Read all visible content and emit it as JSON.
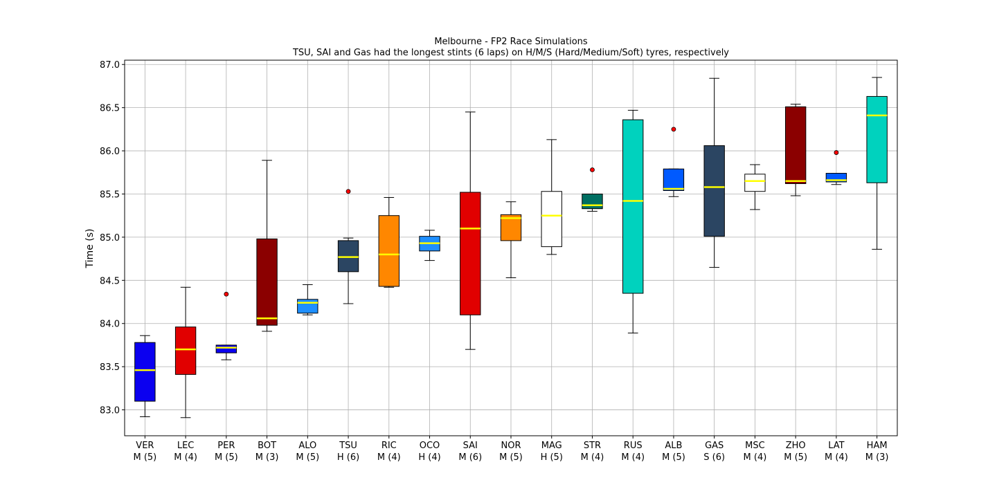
{
  "chart_data": {
    "type": "box",
    "title": "Melbourne - FP2 Race Simulations",
    "subtitle": "TSU, SAI and Gas had the longest stints (6 laps) on H/M/S (Hard/Medium/Soft) tyres, respectively",
    "xlabel": "",
    "ylabel": "Time (s)",
    "ylim": [
      82.7,
      87.05
    ],
    "yticks": [
      83.0,
      83.5,
      84.0,
      84.5,
      85.0,
      85.5,
      86.0,
      86.5,
      87.0
    ],
    "ytick_labels": [
      "83.0",
      "83.5",
      "84.0",
      "84.5",
      "85.0",
      "85.5",
      "86.0",
      "86.5",
      "87.0"
    ],
    "grid": true,
    "median_color": "#ffff00",
    "outlier_color": "#ff0000",
    "boxes": [
      {
        "driver": "VER",
        "stint": "M (5)",
        "color": "#0b00f0",
        "min": 82.92,
        "q1": 83.1,
        "median": 83.46,
        "q3": 83.78,
        "max": 83.86,
        "outliers": []
      },
      {
        "driver": "LEC",
        "stint": "M (4)",
        "color": "#e10000",
        "min": 82.91,
        "q1": 83.41,
        "median": 83.7,
        "q3": 83.96,
        "max": 84.42,
        "outliers": []
      },
      {
        "driver": "PER",
        "stint": "M (5)",
        "color": "#0b00f0",
        "min": 83.58,
        "q1": 83.66,
        "median": 83.72,
        "q3": 83.75,
        "max": 83.75,
        "outliers": [
          84.34
        ]
      },
      {
        "driver": "BOT",
        "stint": "M (3)",
        "color": "#8b0000",
        "min": 83.91,
        "q1": 83.98,
        "median": 84.06,
        "q3": 84.98,
        "max": 85.89,
        "outliers": []
      },
      {
        "driver": "ALO",
        "stint": "M (5)",
        "color": "#1e8fff",
        "min": 84.1,
        "q1": 84.12,
        "median": 84.24,
        "q3": 84.28,
        "max": 84.45,
        "outliers": []
      },
      {
        "driver": "TSU",
        "stint": "H (6)",
        "color": "#2b4562",
        "min": 84.23,
        "q1": 84.6,
        "median": 84.77,
        "q3": 84.96,
        "max": 84.99,
        "outliers": [
          85.53
        ]
      },
      {
        "driver": "RIC",
        "stint": "M (4)",
        "color": "#ff8700",
        "min": 84.42,
        "q1": 84.43,
        "median": 84.8,
        "q3": 85.25,
        "max": 85.46,
        "outliers": []
      },
      {
        "driver": "OCO",
        "stint": "H (4)",
        "color": "#1e8fff",
        "min": 84.73,
        "q1": 84.84,
        "median": 84.93,
        "q3": 85.01,
        "max": 85.08,
        "outliers": []
      },
      {
        "driver": "SAI",
        "stint": "M (6)",
        "color": "#e10000",
        "min": 83.7,
        "q1": 84.1,
        "median": 85.1,
        "q3": 85.52,
        "max": 86.45,
        "outliers": []
      },
      {
        "driver": "NOR",
        "stint": "M (5)",
        "color": "#ff8700",
        "min": 84.53,
        "q1": 84.96,
        "median": 85.22,
        "q3": 85.26,
        "max": 85.41,
        "outliers": []
      },
      {
        "driver": "MAG",
        "stint": "H (5)",
        "color": "#ffffff",
        "min": 84.8,
        "q1": 84.89,
        "median": 85.25,
        "q3": 85.53,
        "max": 86.13,
        "outliers": []
      },
      {
        "driver": "STR",
        "stint": "M (4)",
        "color": "#006f62",
        "min": 85.3,
        "q1": 85.33,
        "median": 85.37,
        "q3": 85.5,
        "max": 85.5,
        "outliers": [
          85.78
        ]
      },
      {
        "driver": "RUS",
        "stint": "M (4)",
        "color": "#00d2be",
        "min": 83.89,
        "q1": 84.35,
        "median": 85.42,
        "q3": 86.36,
        "max": 86.47,
        "outliers": []
      },
      {
        "driver": "ALB",
        "stint": "M (5)",
        "color": "#005aff",
        "min": 85.47,
        "q1": 85.54,
        "median": 85.56,
        "q3": 85.79,
        "max": 85.79,
        "outliers": [
          86.25
        ]
      },
      {
        "driver": "GAS",
        "stint": "S (6)",
        "color": "#2b4562",
        "min": 84.65,
        "q1": 85.01,
        "median": 85.58,
        "q3": 86.06,
        "max": 86.84,
        "outliers": []
      },
      {
        "driver": "MSC",
        "stint": "M (4)",
        "color": "#ffffff",
        "min": 85.32,
        "q1": 85.53,
        "median": 85.65,
        "q3": 85.73,
        "max": 85.84,
        "outliers": []
      },
      {
        "driver": "ZHO",
        "stint": "M (5)",
        "color": "#8b0000",
        "min": 85.48,
        "q1": 85.62,
        "median": 85.65,
        "q3": 86.51,
        "max": 86.54,
        "outliers": []
      },
      {
        "driver": "LAT",
        "stint": "M (4)",
        "color": "#005aff",
        "min": 85.61,
        "q1": 85.64,
        "median": 85.66,
        "q3": 85.74,
        "max": 85.74,
        "outliers": [
          85.98
        ]
      },
      {
        "driver": "HAM",
        "stint": "M (3)",
        "color": "#00d2be",
        "min": 84.86,
        "q1": 85.63,
        "median": 86.41,
        "q3": 86.63,
        "max": 86.85,
        "outliers": []
      }
    ]
  }
}
